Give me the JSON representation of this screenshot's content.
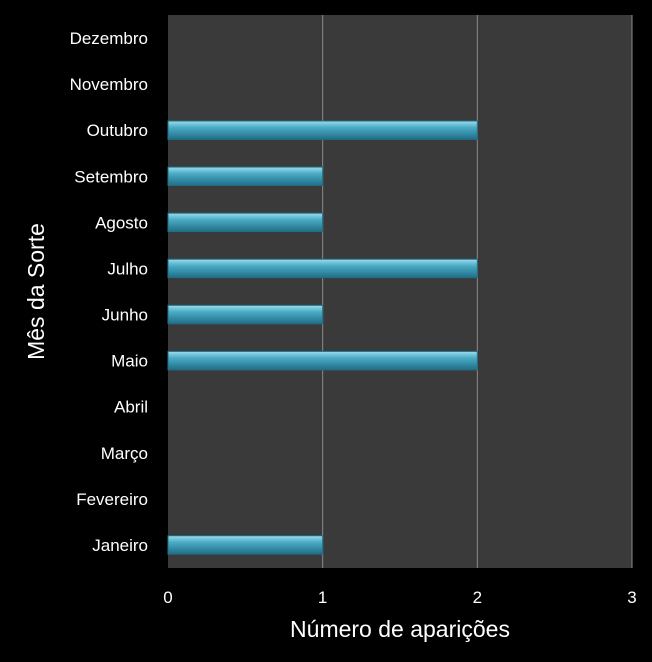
{
  "chart_data": {
    "type": "bar",
    "orientation": "horizontal",
    "categories": [
      "Janeiro",
      "Fevereiro",
      "Março",
      "Abril",
      "Maio",
      "Junho",
      "Julho",
      "Agosto",
      "Setembro",
      "Outubro",
      "Novembro",
      "Dezembro"
    ],
    "values": [
      1,
      0,
      0,
      0,
      2,
      1,
      2,
      1,
      1,
      2,
      0,
      0
    ],
    "xlabel": "Número de aparições",
    "ylabel": "Mês da Sorte",
    "xlim": [
      0,
      3
    ],
    "xticks": [
      "0",
      "1",
      "2",
      "3"
    ],
    "grid": "vertical",
    "colors": {
      "bar": "#4bacc6",
      "bar_dark": "#1f6e86",
      "plot_background": "#3a3a3a",
      "page_background": "#000000",
      "gridline": "#8a8a8a",
      "text": "#ffffff"
    }
  }
}
